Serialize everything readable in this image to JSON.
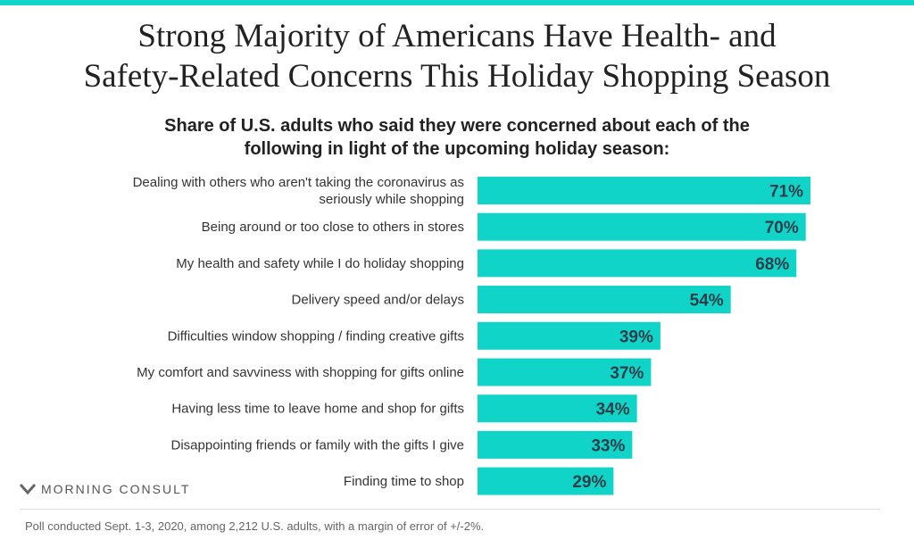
{
  "header": {
    "title_line1": "Strong Majority of Americans Have Health- and",
    "title_line2": "Safety-Related Concerns This Holiday Shopping Season",
    "subtitle_line1": "Share of U.S. adults who said they were concerned about each of the",
    "subtitle_line2": "following in light of the upcoming holiday season:"
  },
  "colors": {
    "bar": "#11d4c8",
    "accent_bar": "#11d4c8",
    "value_text": "#2b3f4a"
  },
  "chart_data": {
    "type": "bar",
    "orientation": "horizontal",
    "categories": [
      "Dealing with others who aren't taking the coronavirus as seriously while shopping",
      "Being around or too close to others in stores",
      "My health and safety while I do holiday shopping",
      "Delivery speed and/or delays",
      "Difficulties window shopping / finding creative gifts",
      "My comfort and savviness with shopping for gifts online",
      "Having less time to leave home and shop for gifts",
      "Disappointing friends or family with the gifts I give",
      "Finding time to shop"
    ],
    "category_lines": [
      [
        "Dealing with others who aren't taking the coronavirus as",
        "seriously while shopping"
      ],
      [
        "Being around or too close to others in stores"
      ],
      [
        "My health and safety while I do holiday shopping"
      ],
      [
        "Delivery speed and/or delays"
      ],
      [
        "Difficulties window shopping / finding creative gifts"
      ],
      [
        "My comfort and savviness with shopping for gifts online"
      ],
      [
        "Having less time to leave home and shop for gifts"
      ],
      [
        "Disappointing friends or family with the gifts I give"
      ],
      [
        "Finding time to shop"
      ]
    ],
    "values": [
      71,
      70,
      68,
      54,
      39,
      37,
      34,
      33,
      29
    ],
    "value_labels": [
      "71%",
      "70%",
      "68%",
      "54%",
      "39%",
      "37%",
      "34%",
      "33%",
      "29%"
    ],
    "xlim": [
      0,
      71
    ],
    "grid": false
  },
  "brand": {
    "logo_icon": "morning-consult-chevron-icon",
    "name": "MORNING CONSULT"
  },
  "footnote": "Poll conducted Sept. 1-3, 2020, among 2,212 U.S. adults, with a margin of error of +/-2%."
}
